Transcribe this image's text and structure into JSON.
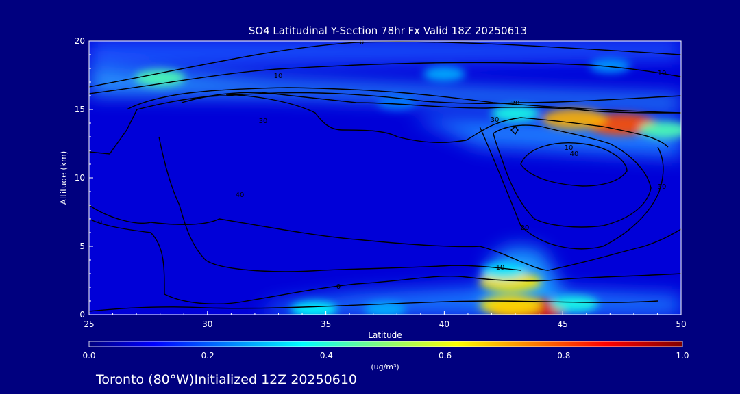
{
  "chart_data": {
    "type": "heatmap",
    "title": "SO4 Latitudinal Y-Section 78hr  Fx Valid 18Z 20250613",
    "xlabel": "Latitude",
    "ylabel": "Altitude (km)",
    "xlim": [
      25,
      50
    ],
    "ylim": [
      0,
      20
    ],
    "xticks": [
      "25",
      "30",
      "35",
      "40",
      "45",
      "50"
    ],
    "yticks": [
      "0",
      "5",
      "10",
      "15",
      "20"
    ],
    "colorbar": {
      "label": "(ug/m³)",
      "range": [
        0.0,
        1.0
      ],
      "ticks": [
        "0.0",
        "0.2",
        "0.4",
        "0.6",
        "0.8",
        "1.0"
      ],
      "colormap": "jet"
    },
    "contour_labels": [
      "0",
      "10",
      "10",
      "20",
      "30",
      "30",
      "40",
      "40",
      "30",
      "20",
      "10",
      "0",
      "0",
      "10"
    ],
    "field_blobs": [
      {
        "lat": 43.5,
        "alt": 0.4,
        "value": 0.9
      },
      {
        "lat": 42.8,
        "alt": 0.7,
        "value": 0.65
      },
      {
        "lat": 42.8,
        "alt": 2.4,
        "value": 0.65
      },
      {
        "lat": 42.5,
        "alt": 3.2,
        "value": 0.35
      },
      {
        "lat": 45.5,
        "alt": 0.8,
        "value": 0.4
      },
      {
        "lat": 34.5,
        "alt": 0.4,
        "value": 0.38
      },
      {
        "lat": 37.5,
        "alt": 0.4,
        "value": 0.3
      },
      {
        "lat": 47.5,
        "alt": 13.9,
        "value": 0.8
      },
      {
        "lat": 45.5,
        "alt": 14.3,
        "value": 0.7
      },
      {
        "lat": 49.3,
        "alt": 13.5,
        "value": 0.45
      },
      {
        "lat": 43.0,
        "alt": 14.7,
        "value": 0.4
      },
      {
        "lat": 28.0,
        "alt": 17.3,
        "value": 0.45
      },
      {
        "lat": 40.0,
        "alt": 17.6,
        "value": 0.3
      },
      {
        "lat": 47.0,
        "alt": 18.2,
        "value": 0.28
      },
      {
        "lat": 38.0,
        "alt": 15.5,
        "value": 0.25
      }
    ]
  },
  "footer": {
    "caption": "Toronto (80°W)Initialized 12Z 20250610"
  }
}
